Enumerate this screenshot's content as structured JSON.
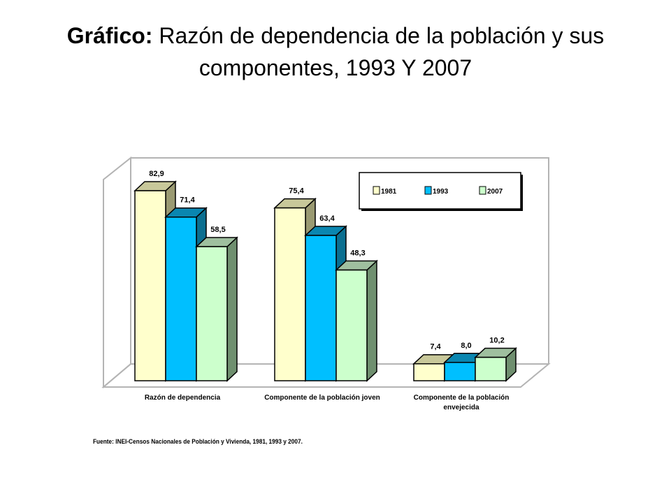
{
  "slide": {
    "title_lead": "Gráfico:",
    "title_rest": "Razón de dependencia de la población y sus",
    "title_line2": "componentes, 1993 Y 2007"
  },
  "chart_data": {
    "type": "bar",
    "style": "3d-clustered",
    "categories": [
      [
        "Razón de dependencia"
      ],
      [
        "Componente de la población joven"
      ],
      [
        "Componente de la población",
        "envejecida"
      ]
    ],
    "series": [
      {
        "name": "1981",
        "values": [
          82.9,
          75.4,
          7.4
        ],
        "labels": [
          "82,9",
          "75,4",
          "7,4"
        ],
        "color": "#ffffcc",
        "side": "#9a9a72",
        "top": "#c8c89a"
      },
      {
        "name": "1993",
        "values": [
          71.4,
          63.4,
          8.0
        ],
        "labels": [
          "71,4",
          "63,4",
          "8,0"
        ],
        "color": "#00bfff",
        "side": "#0b6f90",
        "top": "#0a86b0"
      },
      {
        "name": "2007",
        "values": [
          58.5,
          48.3,
          10.2
        ],
        "labels": [
          "58,5",
          "48,3",
          "10,2"
        ],
        "color": "#ccffcc",
        "side": "#6f8f6f",
        "top": "#9fbf9f"
      }
    ],
    "ylim": [
      0,
      85
    ],
    "grid": false,
    "legend": "top-right",
    "source": "Fuente: INEI-Censos Nacionales de Población y Vivienda, 1981, 1993 y 2007."
  }
}
